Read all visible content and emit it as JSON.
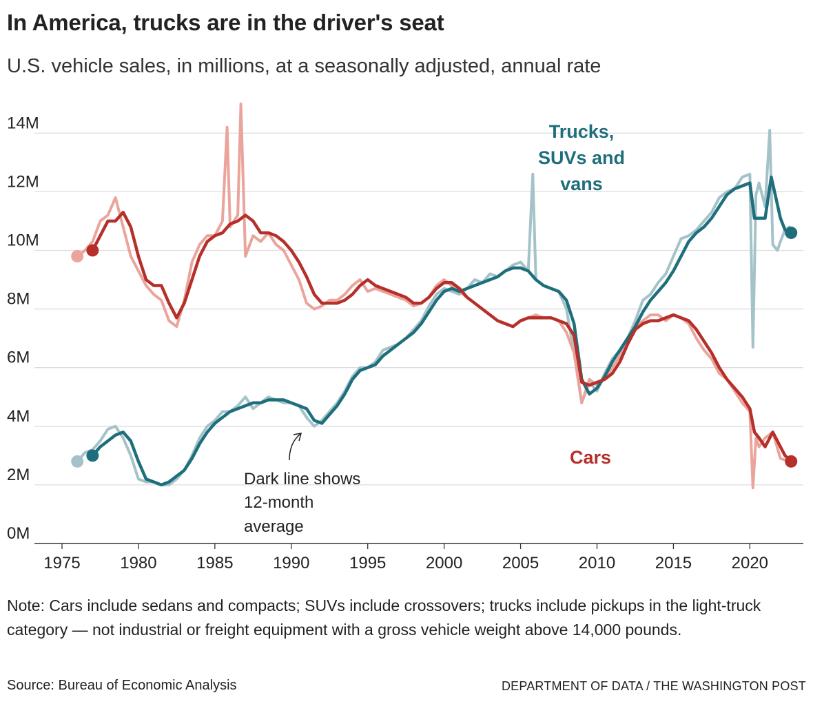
{
  "title": "In America, trucks are in the driver's seat",
  "subtitle": "U.S. vehicle sales, in millions, at a seasonally adjusted, annual rate",
  "note": "Note: Cars include sedans and compacts; SUVs include crossovers; trucks include pickups in the light-truck category — not industrial or freight equipment with a gross vehicle weight above 14,000 pounds.",
  "source": "Source: Bureau of Economic Analysis",
  "credit": "DEPARTMENT OF DATA / THE WASHINGTON POST",
  "annotation": [
    "Dark line shows",
    "12-month",
    "average"
  ],
  "colors": {
    "cars_avg": "#b5302a",
    "cars_raw": "#eba49c",
    "trucks_avg": "#1f6e7c",
    "trucks_raw": "#a4c3c9",
    "grid": "#dddddd",
    "axis": "#333333"
  },
  "chart_data": {
    "type": "line",
    "title": "U.S. vehicle sales, in millions, at a seasonally adjusted, annual rate",
    "xlabel": "",
    "ylabel": "",
    "xlim": [
      1975,
      2023.5
    ],
    "ylim": [
      0,
      14.5
    ],
    "xticks": [
      1975,
      1980,
      1985,
      1990,
      1995,
      2000,
      2005,
      2010,
      2015,
      2020
    ],
    "xtick_labels": [
      "1975",
      "1980",
      "1985",
      "1990",
      "1995",
      "2000",
      "2005",
      "2010",
      "2015",
      "2020"
    ],
    "yticks": [
      0,
      2,
      4,
      6,
      8,
      10,
      12,
      14
    ],
    "ytick_labels": [
      "0M",
      "2M",
      "4M",
      "6M",
      "8M",
      "10M",
      "12M",
      "14M"
    ],
    "series": [
      {
        "name": "Trucks, SUVs and vans",
        "label_lines": [
          "Trucks,",
          "SUVs and",
          "vans"
        ],
        "kind": "monthly",
        "x": [
          1976.0,
          1976.5,
          1977.0,
          1977.5,
          1978.0,
          1978.5,
          1979.0,
          1979.5,
          1980.0,
          1980.5,
          1981.0,
          1981.5,
          1982.0,
          1982.5,
          1983.0,
          1983.5,
          1984.0,
          1984.5,
          1985.0,
          1985.5,
          1986.0,
          1986.5,
          1987.0,
          1987.5,
          1988.0,
          1988.5,
          1989.0,
          1989.5,
          1990.0,
          1990.5,
          1991.0,
          1991.5,
          1992.0,
          1992.5,
          1993.0,
          1993.5,
          1994.0,
          1994.5,
          1995.0,
          1995.5,
          1996.0,
          1996.5,
          1997.0,
          1997.5,
          1998.0,
          1998.5,
          1999.0,
          1999.5,
          2000.0,
          2000.5,
          2001.0,
          2001.5,
          2002.0,
          2002.5,
          2003.0,
          2003.5,
          2004.0,
          2004.5,
          2005.0,
          2005.5,
          2005.8,
          2006.0,
          2006.5,
          2007.0,
          2007.5,
          2008.0,
          2008.5,
          2009.0,
          2009.5,
          2010.0,
          2010.5,
          2011.0,
          2011.5,
          2012.0,
          2012.5,
          2013.0,
          2013.5,
          2014.0,
          2014.5,
          2015.0,
          2015.5,
          2016.0,
          2016.5,
          2017.0,
          2017.5,
          2018.0,
          2018.5,
          2019.0,
          2019.5,
          2020.0,
          2020.2,
          2020.4,
          2020.6,
          2021.0,
          2021.3,
          2021.5,
          2021.8,
          2022.0,
          2022.3,
          2022.6
        ],
        "values": [
          2.8,
          3.1,
          3.2,
          3.5,
          3.9,
          4.0,
          3.6,
          3.0,
          2.2,
          2.1,
          2.1,
          2.0,
          2.0,
          2.2,
          2.5,
          3.0,
          3.6,
          4.0,
          4.2,
          4.5,
          4.5,
          4.7,
          5.0,
          4.6,
          4.8,
          5.0,
          4.9,
          4.8,
          4.8,
          4.7,
          4.3,
          4.0,
          4.2,
          4.5,
          4.8,
          5.2,
          5.7,
          6.0,
          6.0,
          6.2,
          6.6,
          6.7,
          6.8,
          7.0,
          7.3,
          7.6,
          8.1,
          8.5,
          8.7,
          8.6,
          8.5,
          8.7,
          9.0,
          8.9,
          9.2,
          9.1,
          9.3,
          9.5,
          9.6,
          9.3,
          12.6,
          9.0,
          8.8,
          8.7,
          8.6,
          8.0,
          6.5,
          4.8,
          5.5,
          5.2,
          5.8,
          6.3,
          6.6,
          7.0,
          7.6,
          8.3,
          8.5,
          8.9,
          9.2,
          9.8,
          10.4,
          10.5,
          10.7,
          11.0,
          11.3,
          11.8,
          12.0,
          12.1,
          12.5,
          12.6,
          6.7,
          11.9,
          12.3,
          11.5,
          14.1,
          10.2,
          10.0,
          10.3,
          10.7,
          10.8
        ]
      },
      {
        "name": "Trucks, SUVs and vans (12-month average)",
        "kind": "average",
        "x": [
          1977.0,
          1977.5,
          1978.0,
          1978.5,
          1979.0,
          1979.5,
          1980.0,
          1980.5,
          1981.0,
          1981.5,
          1982.0,
          1982.5,
          1983.0,
          1983.5,
          1984.0,
          1984.5,
          1985.0,
          1985.5,
          1986.0,
          1986.5,
          1987.0,
          1987.5,
          1988.0,
          1988.5,
          1989.0,
          1989.5,
          1990.0,
          1990.5,
          1991.0,
          1991.5,
          1992.0,
          1992.5,
          1993.0,
          1993.5,
          1994.0,
          1994.5,
          1995.0,
          1995.5,
          1996.0,
          1996.5,
          1997.0,
          1997.5,
          1998.0,
          1998.5,
          1999.0,
          1999.5,
          2000.0,
          2000.5,
          2001.0,
          2001.5,
          2002.0,
          2002.5,
          2003.0,
          2003.5,
          2004.0,
          2004.5,
          2005.0,
          2005.5,
          2006.0,
          2006.5,
          2007.0,
          2007.5,
          2008.0,
          2008.5,
          2009.0,
          2009.5,
          2010.0,
          2010.5,
          2011.0,
          2011.5,
          2012.0,
          2012.5,
          2013.0,
          2013.5,
          2014.0,
          2014.5,
          2015.0,
          2015.5,
          2016.0,
          2016.5,
          2017.0,
          2017.5,
          2018.0,
          2018.5,
          2019.0,
          2019.5,
          2020.0,
          2020.3,
          2020.6,
          2021.0,
          2021.4,
          2021.7,
          2022.0,
          2022.3,
          2022.7
        ],
        "values": [
          3.0,
          3.3,
          3.5,
          3.7,
          3.8,
          3.5,
          2.8,
          2.2,
          2.1,
          2.0,
          2.1,
          2.3,
          2.5,
          2.9,
          3.4,
          3.8,
          4.1,
          4.3,
          4.5,
          4.6,
          4.7,
          4.8,
          4.8,
          4.9,
          4.9,
          4.9,
          4.8,
          4.7,
          4.6,
          4.2,
          4.1,
          4.4,
          4.7,
          5.1,
          5.6,
          5.9,
          6.0,
          6.1,
          6.4,
          6.6,
          6.8,
          7.0,
          7.2,
          7.5,
          7.9,
          8.3,
          8.6,
          8.7,
          8.6,
          8.7,
          8.8,
          8.9,
          9.0,
          9.1,
          9.3,
          9.4,
          9.4,
          9.3,
          9.0,
          8.8,
          8.7,
          8.6,
          8.3,
          7.5,
          5.6,
          5.1,
          5.3,
          5.7,
          6.2,
          6.6,
          7.0,
          7.4,
          7.9,
          8.3,
          8.6,
          8.9,
          9.3,
          9.8,
          10.3,
          10.6,
          10.8,
          11.1,
          11.5,
          11.9,
          12.1,
          12.2,
          12.3,
          11.1,
          11.1,
          11.1,
          12.5,
          11.8,
          11.1,
          10.7,
          10.6
        ]
      },
      {
        "name": "Cars",
        "label_lines": [
          "Cars"
        ],
        "kind": "monthly",
        "x": [
          1976.0,
          1976.5,
          1977.0,
          1977.5,
          1978.0,
          1978.5,
          1979.0,
          1979.5,
          1980.0,
          1980.5,
          1981.0,
          1981.5,
          1982.0,
          1982.5,
          1983.0,
          1983.5,
          1984.0,
          1984.5,
          1985.0,
          1985.5,
          1985.8,
          1986.0,
          1986.5,
          1986.7,
          1987.0,
          1987.5,
          1988.0,
          1988.5,
          1989.0,
          1989.5,
          1990.0,
          1990.5,
          1991.0,
          1991.5,
          1992.0,
          1992.5,
          1993.0,
          1993.5,
          1994.0,
          1994.5,
          1995.0,
          1995.5,
          1996.0,
          1996.5,
          1997.0,
          1997.5,
          1998.0,
          1998.5,
          1999.0,
          1999.5,
          2000.0,
          2000.5,
          2001.0,
          2001.5,
          2002.0,
          2002.5,
          2003.0,
          2003.5,
          2004.0,
          2004.5,
          2005.0,
          2005.5,
          2006.0,
          2006.5,
          2007.0,
          2007.5,
          2008.0,
          2008.5,
          2009.0,
          2009.5,
          2010.0,
          2010.5,
          2011.0,
          2011.5,
          2012.0,
          2012.5,
          2013.0,
          2013.5,
          2014.0,
          2014.5,
          2015.0,
          2015.5,
          2016.0,
          2016.5,
          2017.0,
          2017.5,
          2018.0,
          2018.5,
          2019.0,
          2019.5,
          2020.0,
          2020.2,
          2020.4,
          2020.6,
          2021.0,
          2021.5,
          2022.0,
          2022.6
        ],
        "values": [
          9.8,
          10.0,
          10.3,
          11.0,
          11.2,
          11.8,
          10.8,
          9.8,
          9.3,
          8.8,
          8.5,
          8.3,
          7.6,
          7.4,
          8.3,
          9.6,
          10.2,
          10.5,
          10.5,
          11.0,
          14.2,
          10.8,
          11.2,
          15.0,
          9.8,
          10.5,
          10.3,
          10.6,
          10.2,
          10.0,
          9.5,
          9.0,
          8.2,
          8.0,
          8.1,
          8.3,
          8.3,
          8.5,
          8.8,
          9.0,
          8.6,
          8.7,
          8.6,
          8.5,
          8.4,
          8.3,
          8.1,
          8.2,
          8.4,
          8.8,
          9.0,
          8.8,
          8.6,
          8.4,
          8.2,
          8.0,
          7.8,
          7.6,
          7.5,
          7.4,
          7.6,
          7.7,
          7.8,
          7.7,
          7.7,
          7.6,
          7.2,
          6.5,
          4.8,
          5.6,
          5.4,
          5.6,
          6.0,
          6.4,
          6.9,
          7.4,
          7.6,
          7.8,
          7.8,
          7.6,
          7.8,
          7.7,
          7.5,
          7.0,
          6.6,
          6.3,
          5.8,
          5.6,
          5.2,
          4.8,
          4.5,
          1.9,
          3.6,
          3.3,
          3.6,
          3.8,
          2.9,
          2.8
        ]
      },
      {
        "name": "Cars (12-month average)",
        "kind": "average",
        "x": [
          1977.0,
          1977.5,
          1978.0,
          1978.5,
          1979.0,
          1979.5,
          1980.0,
          1980.5,
          1981.0,
          1981.5,
          1982.0,
          1982.5,
          1983.0,
          1983.5,
          1984.0,
          1984.5,
          1985.0,
          1985.5,
          1986.0,
          1986.5,
          1987.0,
          1987.5,
          1988.0,
          1988.5,
          1989.0,
          1989.5,
          1990.0,
          1990.5,
          1991.0,
          1991.5,
          1992.0,
          1992.5,
          1993.0,
          1993.5,
          1994.0,
          1994.5,
          1995.0,
          1995.5,
          1996.0,
          1996.5,
          1997.0,
          1997.5,
          1998.0,
          1998.5,
          1999.0,
          1999.5,
          2000.0,
          2000.5,
          2001.0,
          2001.5,
          2002.0,
          2002.5,
          2003.0,
          2003.5,
          2004.0,
          2004.5,
          2005.0,
          2005.5,
          2006.0,
          2006.5,
          2007.0,
          2007.5,
          2008.0,
          2008.5,
          2009.0,
          2009.5,
          2010.0,
          2010.5,
          2011.0,
          2011.5,
          2012.0,
          2012.5,
          2013.0,
          2013.5,
          2014.0,
          2014.5,
          2015.0,
          2015.5,
          2016.0,
          2016.5,
          2017.0,
          2017.5,
          2018.0,
          2018.5,
          2019.0,
          2019.5,
          2020.0,
          2020.3,
          2020.6,
          2021.0,
          2021.5,
          2021.8,
          2022.0,
          2022.3,
          2022.7
        ],
        "values": [
          10.0,
          10.5,
          11.0,
          11.0,
          11.3,
          10.8,
          9.8,
          9.0,
          8.8,
          8.8,
          8.2,
          7.7,
          8.2,
          9.0,
          9.8,
          10.3,
          10.5,
          10.6,
          10.9,
          11.0,
          11.2,
          11.0,
          10.6,
          10.6,
          10.5,
          10.3,
          10.0,
          9.6,
          9.1,
          8.5,
          8.2,
          8.2,
          8.2,
          8.3,
          8.5,
          8.8,
          9.0,
          8.8,
          8.7,
          8.6,
          8.5,
          8.4,
          8.2,
          8.2,
          8.4,
          8.7,
          8.9,
          8.9,
          8.7,
          8.4,
          8.2,
          8.0,
          7.8,
          7.6,
          7.5,
          7.4,
          7.6,
          7.7,
          7.7,
          7.7,
          7.7,
          7.6,
          7.5,
          7.1,
          5.5,
          5.4,
          5.5,
          5.6,
          5.8,
          6.2,
          6.8,
          7.3,
          7.5,
          7.6,
          7.6,
          7.7,
          7.8,
          7.7,
          7.6,
          7.3,
          6.9,
          6.5,
          6.0,
          5.6,
          5.3,
          5.0,
          4.6,
          3.8,
          3.6,
          3.3,
          3.8,
          3.5,
          3.3,
          3.0,
          2.8
        ]
      }
    ]
  }
}
